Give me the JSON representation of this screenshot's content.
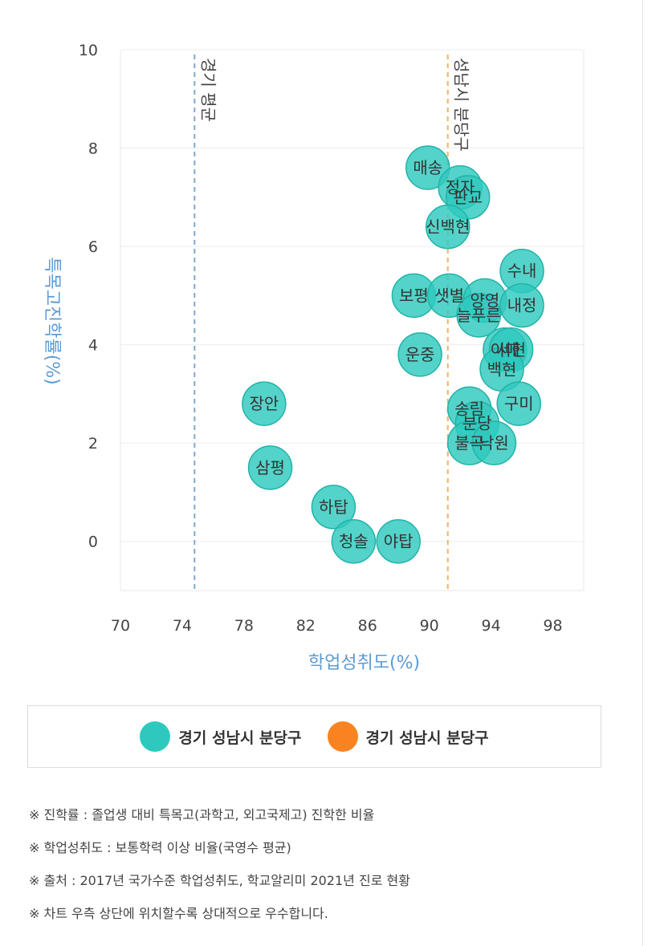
{
  "chart_data": {
    "type": "scatter",
    "xlabel": "학업성취도(%)",
    "ylabel": "특목고진학률(%)",
    "xlim": [
      70,
      100
    ],
    "ylim": [
      -1,
      10
    ],
    "xticks": [
      70,
      74,
      78,
      82,
      86,
      90,
      94,
      98
    ],
    "yticks": [
      0,
      2,
      4,
      6,
      8,
      10
    ],
    "grid": true,
    "reference_lines": [
      {
        "x": 74.8,
        "label": "경기 평균",
        "color": "#7fa7cf"
      },
      {
        "x": 91.2,
        "label": "성남시 분당구",
        "color": "#f5b25e"
      }
    ],
    "series": [
      {
        "name": "경기 성남시 분당구",
        "color": "#2ec9be",
        "points": [
          {
            "label": "매송",
            "x": 89.9,
            "y": 7.6
          },
          {
            "label": "정자",
            "x": 92.0,
            "y": 7.2
          },
          {
            "label": "판교",
            "x": 92.5,
            "y": 7.0
          },
          {
            "label": "신백현",
            "x": 91.2,
            "y": 6.4
          },
          {
            "label": "수내",
            "x": 96.0,
            "y": 5.5
          },
          {
            "label": "보평",
            "x": 89.0,
            "y": 5.0
          },
          {
            "label": "샛별",
            "x": 91.3,
            "y": 5.0
          },
          {
            "label": "양영",
            "x": 93.6,
            "y": 4.9
          },
          {
            "label": "늘푸른",
            "x": 93.2,
            "y": 4.6
          },
          {
            "label": "내정",
            "x": 96.0,
            "y": 4.8
          },
          {
            "label": "운중",
            "x": 89.4,
            "y": 3.8
          },
          {
            "label": "이매",
            "x": 94.9,
            "y": 3.9
          },
          {
            "label": "서현",
            "x": 95.3,
            "y": 3.9
          },
          {
            "label": "백현",
            "x": 94.7,
            "y": 3.5
          },
          {
            "label": "장안",
            "x": 79.3,
            "y": 2.8
          },
          {
            "label": "송림",
            "x": 92.6,
            "y": 2.7
          },
          {
            "label": "구미",
            "x": 95.8,
            "y": 2.8
          },
          {
            "label": "분당",
            "x": 93.1,
            "y": 2.4
          },
          {
            "label": "불곡",
            "x": 92.6,
            "y": 2.0
          },
          {
            "label": "낙원",
            "x": 94.2,
            "y": 2.0
          },
          {
            "label": "삼평",
            "x": 79.7,
            "y": 1.5
          },
          {
            "label": "하탑",
            "x": 83.8,
            "y": 0.7
          },
          {
            "label": "청솔",
            "x": 85.1,
            "y": 0.0
          },
          {
            "label": "야탑",
            "x": 88.0,
            "y": 0.0
          }
        ]
      }
    ]
  },
  "legend": {
    "items": [
      {
        "label": "경기 성남시 분당구",
        "color": "#2ec9be"
      },
      {
        "label": "경기 성남시 분당구",
        "color": "#f98320"
      }
    ]
  },
  "notes": [
    "※ 진학률 : 졸업생 대비 특목고(과학고, 외고국제고) 진학한 비율",
    "※ 학업성취도 : 보통학력 이상 비율(국영수 평균)",
    "※ 출처 : 2017년 국가수준 학업성취도, 학교알리미 2021년 진로 현황",
    "※ 차트 우측 상단에 위치할수록 상대적으로 우수합니다."
  ]
}
